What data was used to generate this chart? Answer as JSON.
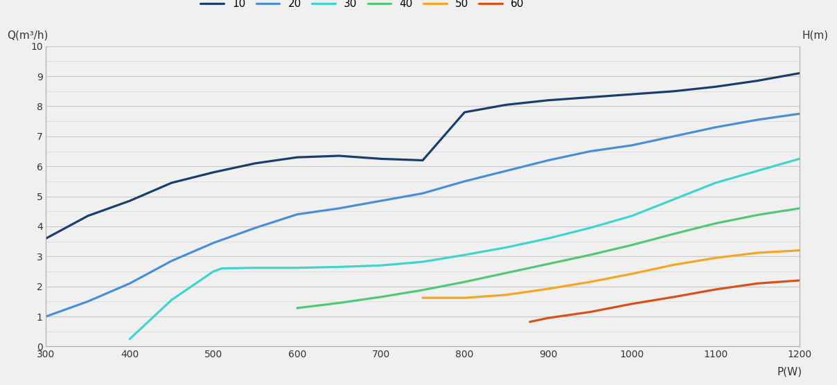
{
  "xlabel": "P(W)",
  "ylabel": "Q(m³/h)",
  "ylabel_right": "H(m)",
  "xlim": [
    300,
    1200
  ],
  "ylim": [
    0,
    10
  ],
  "xticks": [
    300,
    400,
    500,
    600,
    700,
    800,
    900,
    1000,
    1100,
    1200
  ],
  "yticks": [
    0,
    1,
    2,
    3,
    4,
    5,
    6,
    7,
    8,
    9,
    10
  ],
  "series": [
    {
      "label": "10",
      "color": "#1b3d6e",
      "x": [
        300,
        350,
        400,
        450,
        500,
        550,
        600,
        650,
        700,
        750,
        800,
        850,
        900,
        950,
        1000,
        1050,
        1100,
        1150,
        1200
      ],
      "y": [
        3.6,
        4.35,
        4.85,
        5.45,
        5.8,
        6.1,
        6.3,
        6.35,
        6.25,
        6.2,
        7.8,
        8.05,
        8.2,
        8.3,
        8.4,
        8.5,
        8.65,
        8.85,
        9.1
      ]
    },
    {
      "label": "20",
      "color": "#4a8fd4",
      "x": [
        300,
        350,
        400,
        450,
        500,
        550,
        600,
        650,
        700,
        750,
        800,
        850,
        900,
        950,
        1000,
        1050,
        1100,
        1150,
        1200
      ],
      "y": [
        1.0,
        1.5,
        2.1,
        2.85,
        3.45,
        3.95,
        4.4,
        4.6,
        4.85,
        5.1,
        5.5,
        5.85,
        6.2,
        6.5,
        6.7,
        7.0,
        7.3,
        7.55,
        7.75
      ]
    },
    {
      "label": "30",
      "color": "#40d4cc",
      "x": [
        400,
        450,
        500,
        510,
        550,
        600,
        650,
        700,
        750,
        800,
        850,
        900,
        950,
        1000,
        1050,
        1100,
        1150,
        1200
      ],
      "y": [
        0.25,
        1.55,
        2.5,
        2.6,
        2.62,
        2.62,
        2.65,
        2.7,
        2.82,
        3.05,
        3.3,
        3.6,
        3.95,
        4.35,
        4.9,
        5.45,
        5.85,
        6.25
      ]
    },
    {
      "label": "40",
      "color": "#50c878",
      "x": [
        600,
        650,
        700,
        750,
        800,
        850,
        900,
        950,
        1000,
        1050,
        1100,
        1150,
        1200
      ],
      "y": [
        1.28,
        1.45,
        1.65,
        1.88,
        2.15,
        2.45,
        2.75,
        3.05,
        3.38,
        3.75,
        4.1,
        4.38,
        4.6
      ]
    },
    {
      "label": "50",
      "color": "#f5a623",
      "x": [
        750,
        800,
        850,
        900,
        950,
        1000,
        1050,
        1100,
        1150,
        1200
      ],
      "y": [
        1.62,
        1.62,
        1.72,
        1.92,
        2.15,
        2.42,
        2.72,
        2.95,
        3.12,
        3.2
      ]
    },
    {
      "label": "60",
      "color": "#d9501a",
      "x": [
        878,
        900,
        950,
        1000,
        1050,
        1100,
        1150,
        1200
      ],
      "y": [
        0.82,
        0.95,
        1.15,
        1.42,
        1.65,
        1.9,
        2.1,
        2.2
      ]
    }
  ],
  "background_color": "#f0f0f0",
  "plot_bg_color": "#f0f0f0",
  "grid_color": "#c8c8c8",
  "grid_minor_color": "#d8d8d8",
  "line_width": 2.3
}
